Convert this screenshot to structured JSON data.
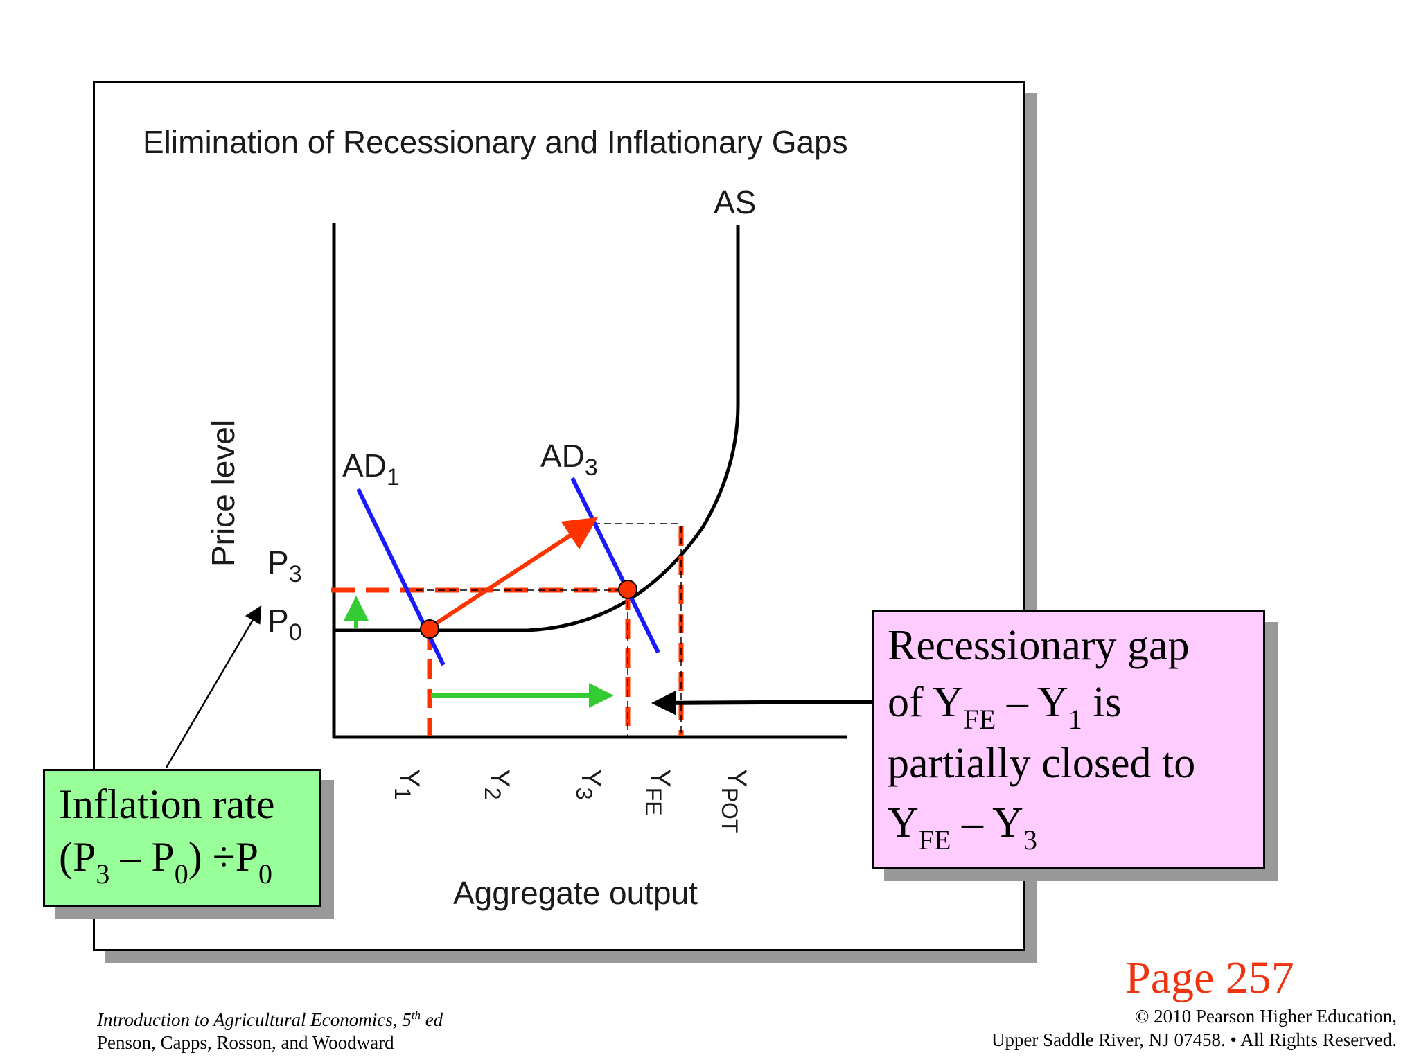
{
  "title": "Elimination of Recessionary and Inflationary Gaps",
  "axes": {
    "y_label": "Price level",
    "x_label": "Aggregate output"
  },
  "curves": {
    "as": {
      "label": "AS"
    },
    "ad1": {
      "main": "AD",
      "sub": "1"
    },
    "ad3": {
      "main": "AD",
      "sub": "3"
    }
  },
  "price_labels": [
    {
      "main": "P",
      "sub": "3"
    },
    {
      "main": "P",
      "sub": "0"
    }
  ],
  "output_labels": [
    {
      "main": "Y",
      "sub": "1"
    },
    {
      "main": "Y",
      "sub": "2"
    },
    {
      "main": "Y",
      "sub": "3"
    },
    {
      "main": "Y",
      "sub": "FE"
    },
    {
      "main": "Y",
      "sub": "POT"
    }
  ],
  "inflation_callout": {
    "line1": "Inflation rate",
    "p1": "(P",
    "s1": "3",
    "m1": " – P",
    "s2": "0",
    "m2": ") ÷P",
    "s3": "0"
  },
  "gap_callout": {
    "line1": "Recessionary gap",
    "l2a": "of Y",
    "l2s1": "FE",
    "l2b": " – Y",
    "l2s2": "1",
    "l2c": " is",
    "line3": "partially closed to",
    "l4a": "Y",
    "l4s1": "FE",
    "l4b": " – Y",
    "l4s2": "3"
  },
  "page_label": "Page 257",
  "footer_left": {
    "book": "Introduction to Agricultural Economics, 5",
    "sup": "th",
    "ed": " ed",
    "authors": "Penson, Capps, Rosson, and Woodward"
  },
  "footer_right": {
    "line1": "© 2010 Pearson Higher Education,",
    "line2": "Upper Saddle River, NJ 07458. • All Rights Reserved."
  },
  "colors": {
    "ad_curve": "#1a1aff",
    "marker": "#ff3300",
    "arrow_green": "#33cc33",
    "inflation_bg": "#99ff99",
    "gap_bg": "#ffccff",
    "page_label": "#ee3311"
  }
}
